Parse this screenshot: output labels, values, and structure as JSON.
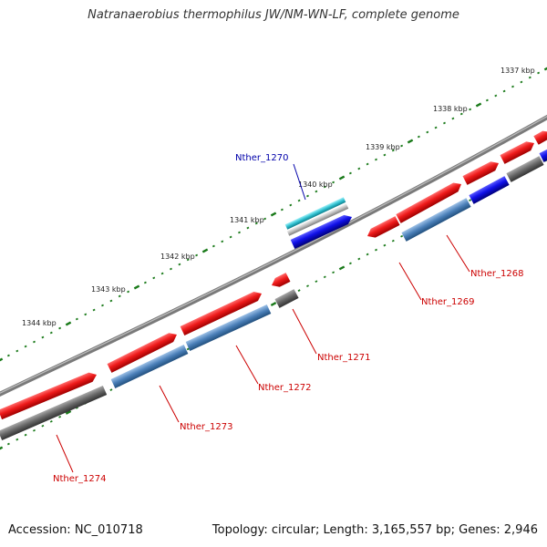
{
  "title": "Natranaerobius thermophilus JW/NM-WN-LF, complete genome",
  "footer": {
    "accession": "Accession: NC_010718",
    "summary": "Topology: circular; Length: 3,165,557 bp; Genes: 2,946"
  },
  "colors": {
    "backbone": "#7a7a7a",
    "red_gene": "#e01010",
    "blue_gene": "#1010e0",
    "steelblue_gene": "#4a7fb8",
    "gray_gene": "#666666",
    "cyan_gene": "#30c0d0",
    "ticks": "#1a7a1a",
    "label_red": "#cc0000",
    "label_blue": "#0000aa"
  },
  "ticks": [
    {
      "label": "1337 kbp"
    },
    {
      "label": "1338 kbp"
    },
    {
      "label": "1339 kbp"
    },
    {
      "label": "1340 kbp"
    },
    {
      "label": "1341 kbp"
    },
    {
      "label": "1342 kbp"
    },
    {
      "label": "1343 kbp"
    },
    {
      "label": "1344 kbp"
    }
  ],
  "gene_labels": [
    {
      "id": "Nther_1270"
    },
    {
      "id": "Nther_1268"
    },
    {
      "id": "Nther_1269"
    },
    {
      "id": "Nther_1271"
    },
    {
      "id": "Nther_1272"
    },
    {
      "id": "Nther_1273"
    },
    {
      "id": "Nther_1274"
    }
  ]
}
